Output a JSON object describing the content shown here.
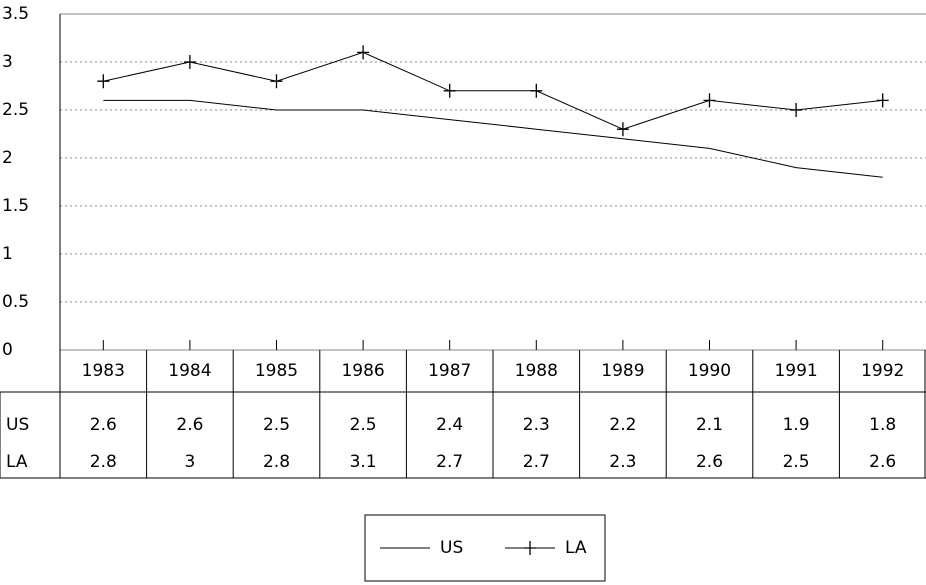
{
  "chart_data": {
    "type": "line",
    "categories": [
      "1983",
      "1984",
      "1985",
      "1986",
      "1987",
      "1988",
      "1989",
      "1990",
      "1991",
      "1992"
    ],
    "series": [
      {
        "name": "US",
        "color": "#000000",
        "values": [
          2.6,
          2.6,
          2.5,
          2.5,
          2.4,
          2.3,
          2.2,
          2.1,
          1.9,
          1.8
        ]
      },
      {
        "name": "LA",
        "color": "#000000",
        "values": [
          2.8,
          3,
          2.8,
          3.1,
          2.7,
          2.7,
          2.3,
          2.6,
          2.5,
          2.6
        ]
      }
    ],
    "ylim": [
      0,
      3.5
    ],
    "yticks": [
      0,
      0.5,
      1,
      1.5,
      2,
      2.5,
      3,
      3.5
    ],
    "grid": true,
    "legend": "bottom"
  }
}
